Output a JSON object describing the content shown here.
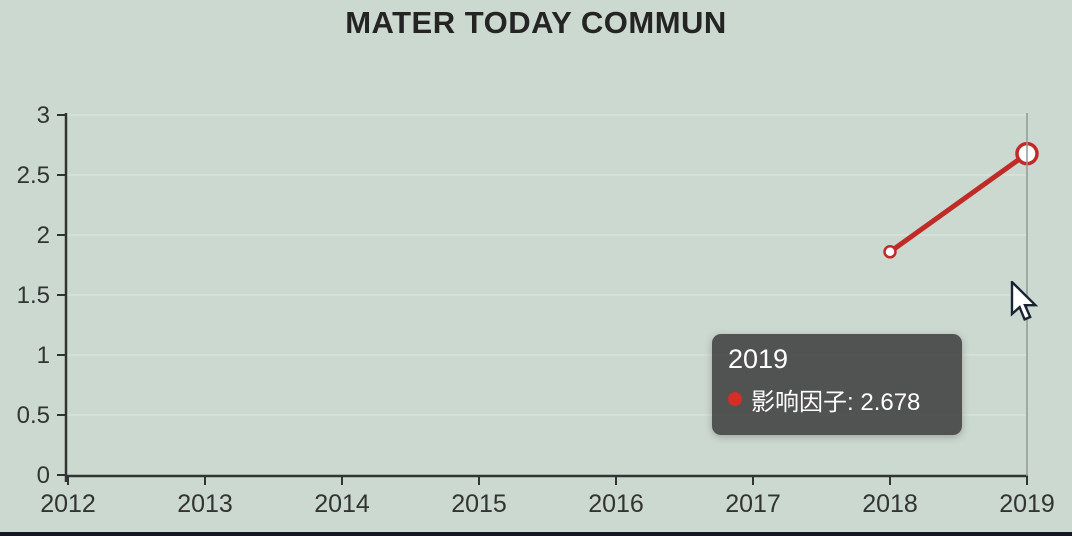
{
  "page": {
    "background": "#ccd9d1",
    "bottom_strip_color": "#141824"
  },
  "chart_data": {
    "type": "line",
    "title": "MATER TODAY COMMUN",
    "title_color": "#242424",
    "xlabel": "",
    "ylabel": "",
    "x_ticks": [
      "2012",
      "2013",
      "2014",
      "2015",
      "2016",
      "2017",
      "2018",
      "2019"
    ],
    "y_ticks": [
      "0",
      "0.5",
      "1",
      "1.5",
      "2",
      "2.5",
      "3"
    ],
    "xlim": [
      2012,
      2019
    ],
    "ylim": [
      0,
      3
    ],
    "grid": "faint horizontal gridlines at each y tick",
    "legend_position": "none",
    "axis_color": "#333333",
    "grid_color": "#d7e2da",
    "series": [
      {
        "name": "影响因子",
        "color": "#c02b28",
        "marker": "open-circle-white-fill",
        "points": [
          {
            "x": 2018,
            "y": 1.86
          },
          {
            "x": 2019,
            "y": 2.678
          }
        ]
      }
    ],
    "hover": {
      "x": 2019,
      "crosshair": true,
      "crosshair_color": "#8f9a94"
    },
    "tooltip": {
      "title": "2019",
      "series_label": "影响因子:",
      "value": "2.678",
      "marker_color": "#d32f27",
      "bg": "rgba(64,64,64,0.88)",
      "text_color": "#ffffff"
    }
  },
  "cursor": {
    "type": "arrow-pointer"
  }
}
